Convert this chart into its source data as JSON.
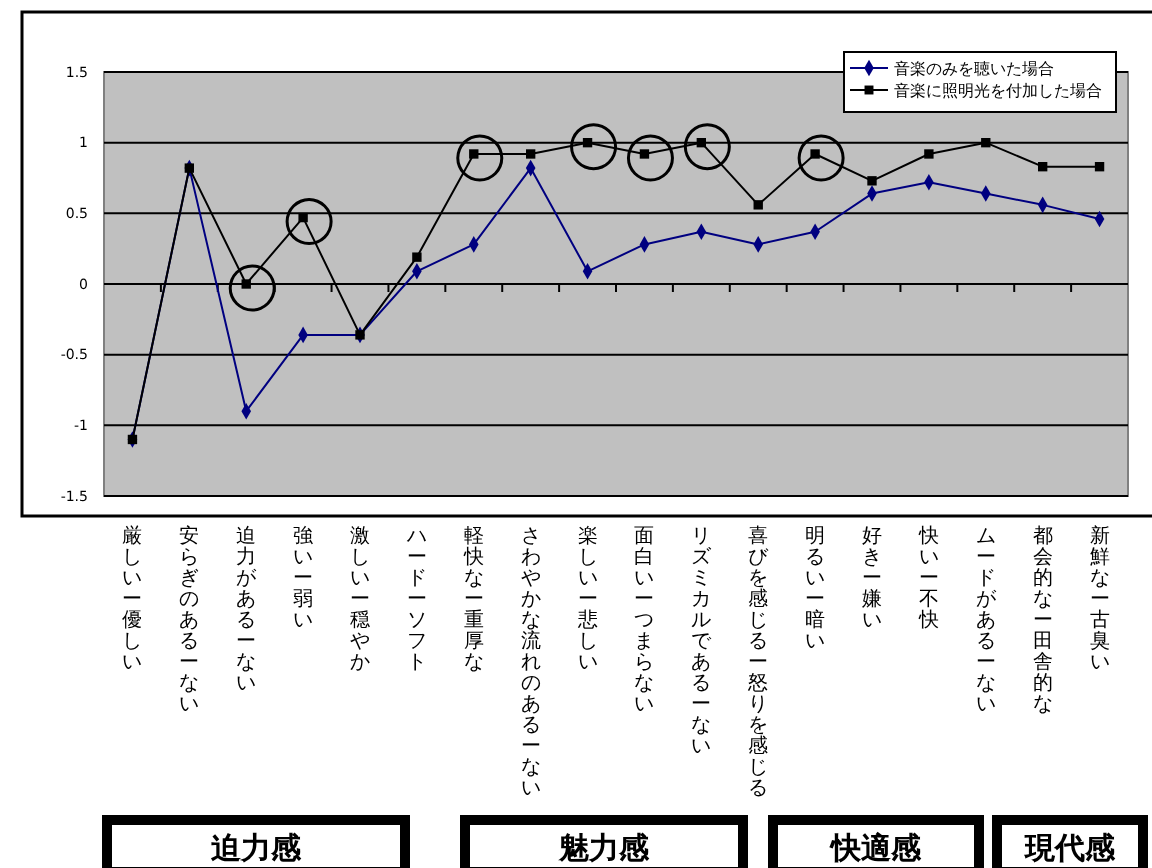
{
  "chart_data": {
    "type": "line",
    "categories": [
      "厳しいー優しい",
      "安らぎのあるーない",
      "迫力があるーない",
      "強いー弱い",
      "激しいー穏やか",
      "ハードーソフト",
      "軽快なー重厚な",
      "さわやかな流れのあるーない",
      "楽しいー悲しい",
      "面白いーつまらない",
      "リズミカルであるーない",
      "喜びを感じるー怒りを感じる",
      "明るいー暗い",
      "好きー嫌い",
      "快いー不快",
      "ムードがあるーない",
      "都会的なー田舎的な",
      "新鮮なー古臭い"
    ],
    "series": [
      {
        "name": "音楽のみを聴いた場合",
        "color": "#000080",
        "marker": "diamond",
        "values": [
          -1.1,
          0.82,
          -0.9,
          -0.36,
          -0.36,
          0.09,
          0.28,
          0.82,
          0.09,
          0.28,
          0.37,
          0.28,
          0.37,
          0.64,
          0.72,
          0.64,
          0.56,
          0.46
        ]
      },
      {
        "name": "音楽に照明光を付加した場合",
        "color": "#000000",
        "marker": "square",
        "values": [
          -1.1,
          0.82,
          0,
          0.47,
          -0.36,
          0.19,
          0.92,
          0.92,
          1.0,
          0.92,
          1.0,
          0.56,
          0.92,
          0.73,
          0.92,
          1.0,
          0.83,
          0.83
        ]
      }
    ],
    "ylim": [
      -1.5,
      1.5
    ],
    "yticks": [
      -1.5,
      -1,
      -0.5,
      0,
      0.5,
      1,
      1.5
    ],
    "grid": "y",
    "legend": "top right",
    "line_style": "solid",
    "annotations": [
      "迫力感",
      "魅力感",
      "快適感",
      "現代感"
    ]
  }
}
